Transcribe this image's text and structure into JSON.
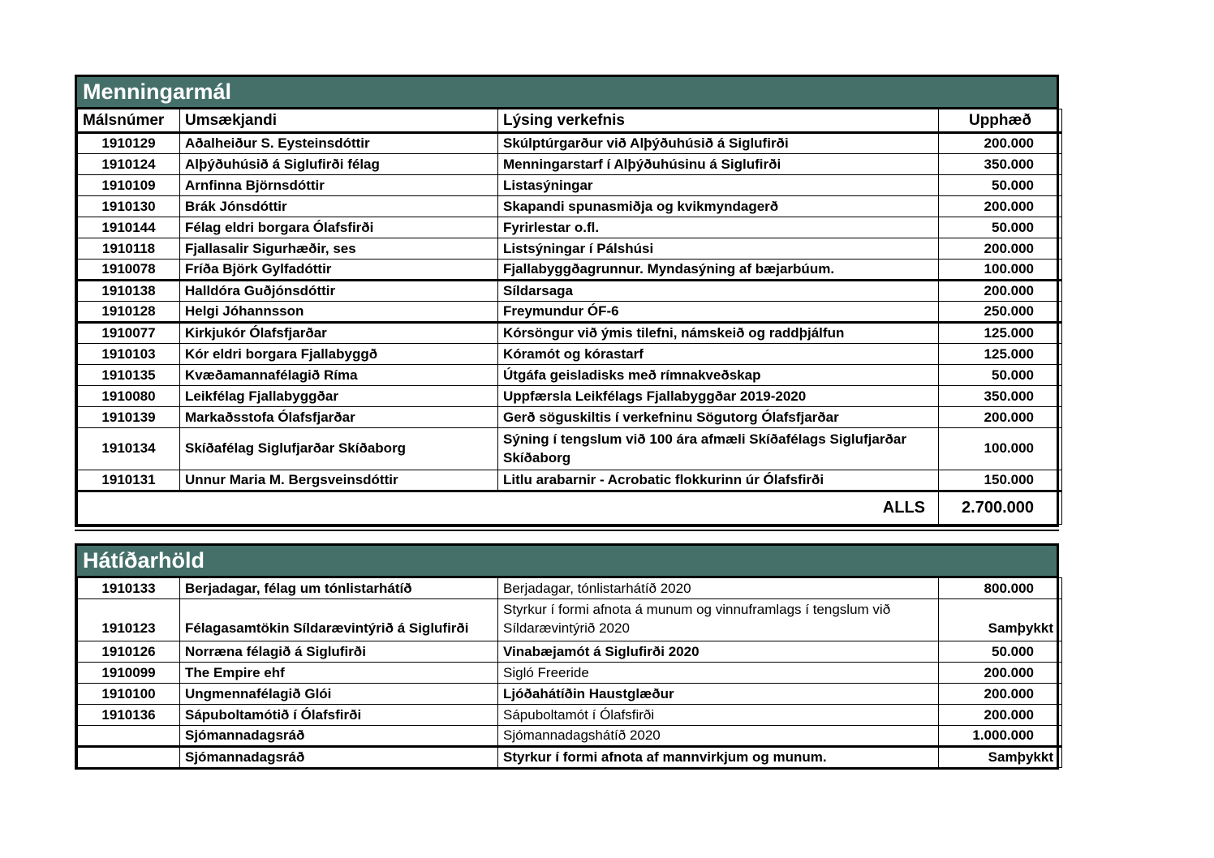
{
  "colors": {
    "section_header_bg": "#45706A",
    "section_header_text": "#FFFFFF",
    "grid_line": "#000000",
    "page_bg": "#FFFFFF"
  },
  "tables": [
    {
      "title": "Menningarmál",
      "columns": [
        "Málsnúmer",
        "Umsækjandi",
        "Lýsing verkefnis",
        "Upphæð"
      ],
      "rows": [
        {
          "case": "1910129",
          "applicant": "Aðalheiður S. Eysteinsdóttir",
          "project": "Skúlptúrgarður við Alþýðuhúsið á Siglufirði",
          "amount": "200.000"
        },
        {
          "case": "1910124",
          "applicant": "Alþýðuhúsið á Siglufirði félag",
          "project": "Menningarstarf í Alþýðuhúsinu á Siglufirði",
          "amount": "350.000"
        },
        {
          "case": "1910109",
          "applicant": "Arnfinna Björnsdóttir",
          "project": "Listasýningar",
          "amount": "50.000"
        },
        {
          "case": "1910130",
          "applicant": "Brák Jónsdóttir",
          "project": "Skapandi spunasmiðja og kvikmyndagerð",
          "amount": "200.000"
        },
        {
          "case": "1910144",
          "applicant": "Félag eldri borgara Ólafsfirði",
          "project": "Fyrirlestar o.fl.",
          "amount": "50.000"
        },
        {
          "case": "1910118",
          "applicant": "Fjallasalir Sigurhæðir, ses",
          "project": "Listsýningar í Pálshúsi",
          "amount": "200.000"
        },
        {
          "case": "1910078",
          "applicant": "Fríða Björk Gylfadóttir",
          "project": "Fjallabyggðagrunnur. Myndasýning af bæjarbúum.",
          "amount": "100.000",
          "thick_bottom": true
        },
        {
          "case": "1910138",
          "applicant": "Halldóra Guðjónsdóttir",
          "project": "Síldarsaga",
          "amount": "200.000"
        },
        {
          "case": "1910128",
          "applicant": "Helgi Jóhannsson",
          "project": "Freymundur ÓF-6",
          "amount": "250.000",
          "thick_bottom": true
        },
        {
          "case": "1910077",
          "applicant": "Kirkjukór Ólafsfjarðar",
          "project": "Kórsöngur við ýmis tilefni, námskeið og raddþjálfun",
          "amount": "125.000"
        },
        {
          "case": "1910103",
          "applicant": "Kór eldri borgara Fjallabyggð",
          "project": "Kóramót og kórastarf",
          "amount": "125.000"
        },
        {
          "case": "1910135",
          "applicant": "Kvæðamannafélagið Ríma",
          "project": "Útgáfa geisladisks með rímnakveðskap",
          "amount": "50.000"
        },
        {
          "case": "1910080",
          "applicant": "Leikfélag Fjallabyggðar",
          "project": "Uppfærsla Leikfélags Fjallabyggðar 2019-2020",
          "amount": "350.000"
        },
        {
          "case": "1910139",
          "applicant": "Markaðsstofa Ólafsfjarðar",
          "project": "Gerð söguskiltis í verkefninu Sögutorg Ólafsfjarðar",
          "amount": "200.000"
        },
        {
          "case": "1910134",
          "applicant": "Skíðafélag Siglufjarðar Skíðaborg",
          "project": "Sýning í tengslum við 100 ára afmæli Skíðafélags Siglufjarðar Skíðaborg",
          "amount": "100.000",
          "tall": true
        },
        {
          "case": "1910131",
          "applicant": "Unnur Maria M. Bergsveinsdóttir",
          "project": "Litlu arabarnir -  Acrobatic flokkurinn úr Ólafsfirði",
          "amount": "150.000"
        }
      ],
      "total": {
        "label": "ALLS",
        "value": "2.700.000"
      }
    },
    {
      "title": "Hátíðarhöld",
      "columns": [],
      "rows": [
        {
          "case": "1910133",
          "applicant": "Berjadagar, félag um tónlistarhátíð",
          "project": "Berjadagar, tónlistarhátíð 2020",
          "amount": "800.000",
          "project_regular": true
        },
        {
          "case": "1910123",
          "applicant": "Félagasamtökin Síldarævintýrið á Siglufirði",
          "project": "Styrkur í formi afnota á munum og vinnuframlags í tengslum við Síldarævintýrið 2020",
          "amount": "Samþykkt",
          "tall": true,
          "valign_bottom": true,
          "project_regular": true
        },
        {
          "case": "1910126",
          "applicant": "Norræna félagið á Siglufirði",
          "project": "Vinabæjamót á Siglufirði 2020",
          "amount": "50.000"
        },
        {
          "case": "1910099",
          "applicant": "The Empire ehf",
          "project": "Sigló Freeride",
          "amount": "200.000",
          "project_regular": true,
          "applicant_regular": false
        },
        {
          "case": "1910100",
          "applicant": "Ungmennafélagið Glói",
          "project": "Ljóðahátíðin Haustglæður",
          "amount": "200.000"
        },
        {
          "case": "1910136",
          "applicant": "Sápuboltamótið í Ólafsfirði",
          "project": "Sápuboltamót í Ólafsfirði",
          "amount": "200.000",
          "project_regular": true
        },
        {
          "case": "",
          "applicant": "Sjómannadagsráð",
          "project": "Sjómannadagshátíð 2020",
          "amount": "1.000.000",
          "project_regular": true,
          "thick_bottom": true
        },
        {
          "case": "",
          "applicant": "Sjómannadagsráð",
          "project": "Styrkur í formi afnota af mannvirkjum og munum.",
          "amount": "Samþykkt"
        }
      ]
    }
  ]
}
